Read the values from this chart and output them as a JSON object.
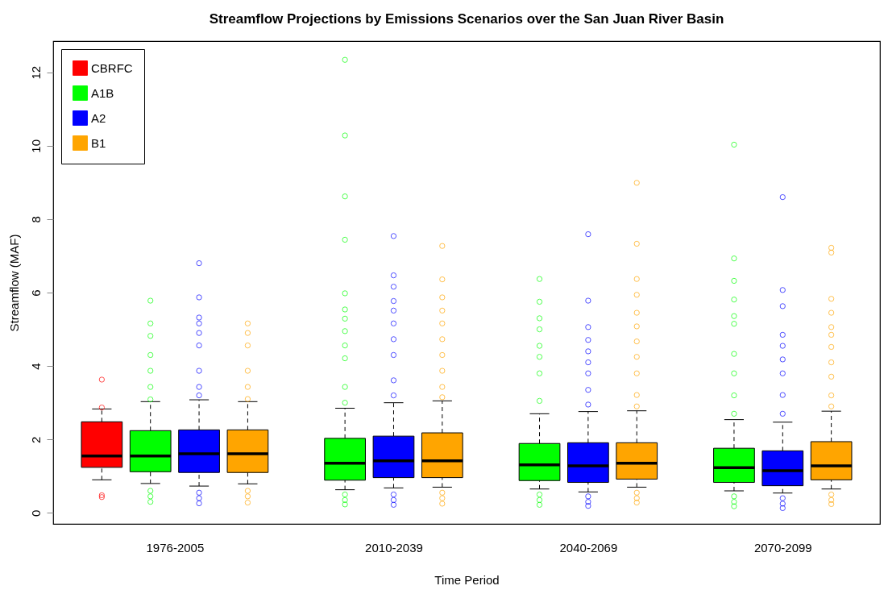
{
  "chart_data": {
    "type": "box",
    "title": "Streamflow Projections by Emissions Scenarios over the San Juan River Basin",
    "xlabel": "Time Period",
    "ylabel": "Streamflow (MAF)",
    "categories": [
      "1976-2005",
      "2010-2039",
      "2040-2069",
      "2070-2099"
    ],
    "ylim": [
      -0.3,
      12.85
    ],
    "yticks": [
      0,
      2,
      4,
      6,
      8,
      10,
      12
    ],
    "grid": false,
    "legend": "top left",
    "series": [
      {
        "name": "CBRFC",
        "color": "#ff0000",
        "boxes": [
          {
            "low": 0.9,
            "q1": 1.24,
            "median": 1.55,
            "q3": 2.48,
            "high": 2.83,
            "outliers": [
              3.63,
              2.87,
              0.48,
              0.43
            ]
          },
          null,
          null,
          null
        ]
      },
      {
        "name": "A1B",
        "color": "#00ff00",
        "boxes": [
          {
            "low": 0.8,
            "q1": 1.12,
            "median": 1.55,
            "q3": 2.24,
            "high": 3.03,
            "outliers": [
              5.78,
              5.16,
              4.82,
              4.3,
              3.87,
              3.43,
              3.09,
              0.6,
              0.45,
              0.3
            ]
          },
          {
            "low": 0.63,
            "q1": 0.89,
            "median": 1.35,
            "q3": 2.03,
            "high": 2.85,
            "outliers": [
              12.34,
              10.28,
              8.62,
              7.44,
              5.98,
              5.54,
              5.29,
              4.95,
              4.56,
              4.21,
              3.43,
              3.0,
              0.5,
              0.35,
              0.23
            ]
          },
          {
            "low": 0.65,
            "q1": 0.88,
            "median": 1.31,
            "q3": 1.89,
            "high": 2.7,
            "outliers": [
              6.37,
              5.75,
              5.3,
              5.0,
              4.55,
              4.25,
              3.8,
              3.05,
              0.5,
              0.35,
              0.22
            ]
          },
          {
            "low": 0.6,
            "q1": 0.83,
            "median": 1.23,
            "q3": 1.76,
            "high": 2.54,
            "outliers": [
              10.03,
              6.93,
              6.32,
              5.81,
              5.36,
              5.15,
              4.33,
              3.8,
              3.2,
              2.7,
              0.45,
              0.3,
              0.18
            ]
          }
        ]
      },
      {
        "name": "A2",
        "color": "#0000ff",
        "boxes": [
          {
            "low": 0.73,
            "q1": 1.1,
            "median": 1.61,
            "q3": 2.26,
            "high": 3.08,
            "outliers": [
              6.8,
              5.87,
              5.32,
              5.16,
              4.9,
              4.56,
              3.87,
              3.43,
              3.2,
              0.55,
              0.4,
              0.26
            ]
          },
          {
            "low": 0.68,
            "q1": 0.96,
            "median": 1.42,
            "q3": 2.09,
            "high": 3.0,
            "outliers": [
              7.54,
              6.47,
              6.16,
              5.77,
              5.51,
              5.16,
              4.73,
              4.3,
              3.61,
              3.2,
              0.5,
              0.35,
              0.22
            ]
          },
          {
            "low": 0.57,
            "q1": 0.83,
            "median": 1.28,
            "q3": 1.91,
            "high": 2.76,
            "outliers": [
              7.59,
              5.78,
              5.06,
              4.71,
              4.4,
              4.1,
              3.8,
              3.35,
              2.95,
              0.45,
              0.3,
              0.19
            ]
          },
          {
            "low": 0.54,
            "q1": 0.74,
            "median": 1.15,
            "q3": 1.69,
            "high": 2.47,
            "outliers": [
              8.6,
              6.07,
              5.63,
              4.85,
              4.55,
              4.18,
              3.8,
              3.21,
              2.7,
              0.4,
              0.25,
              0.13
            ]
          }
        ]
      },
      {
        "name": "B1",
        "color": "#ffa500",
        "boxes": [
          {
            "low": 0.79,
            "q1": 1.1,
            "median": 1.61,
            "q3": 2.26,
            "high": 3.03,
            "outliers": [
              5.16,
              4.9,
              4.56,
              3.87,
              3.43,
              3.1,
              0.6,
              0.45,
              0.28
            ]
          },
          {
            "low": 0.7,
            "q1": 0.96,
            "median": 1.42,
            "q3": 2.18,
            "high": 3.05,
            "outliers": [
              7.27,
              6.36,
              5.87,
              5.51,
              5.16,
              4.73,
              4.3,
              3.87,
              3.43,
              3.15,
              0.55,
              0.4,
              0.25
            ]
          },
          {
            "low": 0.7,
            "q1": 0.92,
            "median": 1.35,
            "q3": 1.91,
            "high": 2.78,
            "outliers": [
              8.99,
              7.33,
              6.37,
              5.94,
              5.45,
              5.08,
              4.67,
              4.25,
              3.8,
              3.21,
              2.9,
              0.55,
              0.4,
              0.28
            ]
          },
          {
            "low": 0.65,
            "q1": 0.9,
            "median": 1.28,
            "q3": 1.94,
            "high": 2.77,
            "outliers": [
              7.22,
              7.09,
              5.83,
              5.45,
              5.06,
              4.85,
              4.52,
              4.1,
              3.71,
              3.2,
              2.9,
              0.5,
              0.35,
              0.24
            ]
          }
        ]
      }
    ]
  }
}
